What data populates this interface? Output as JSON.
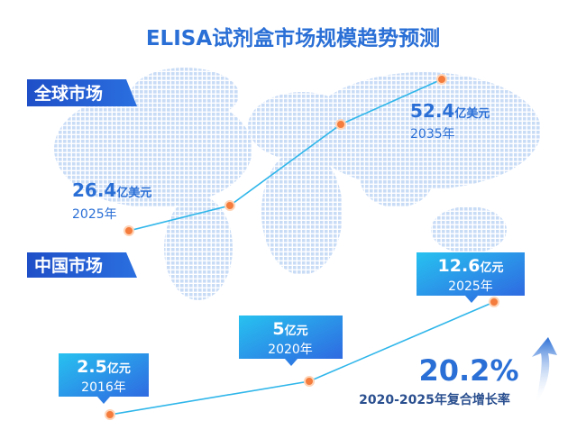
{
  "title": "ELISA试剂盒市场规模趋势预测",
  "global_market": {
    "label": "全球市场",
    "points": [
      {
        "value": 26.4,
        "unit": "亿美元",
        "year": "2025年"
      },
      {
        "value": 52.4,
        "unit": "亿美元",
        "year": "2035年"
      }
    ]
  },
  "china_market": {
    "label": "中国市场",
    "points": [
      {
        "value": 2.5,
        "unit": "亿元",
        "year": "2016年"
      },
      {
        "value": 5,
        "unit": "亿元",
        "year": "2020年"
      },
      {
        "value": 12.6,
        "unit": "亿元",
        "year": "2025年"
      }
    ]
  },
  "cagr": {
    "value": "20.2%",
    "label": "2020-2025年复合增长率"
  }
}
